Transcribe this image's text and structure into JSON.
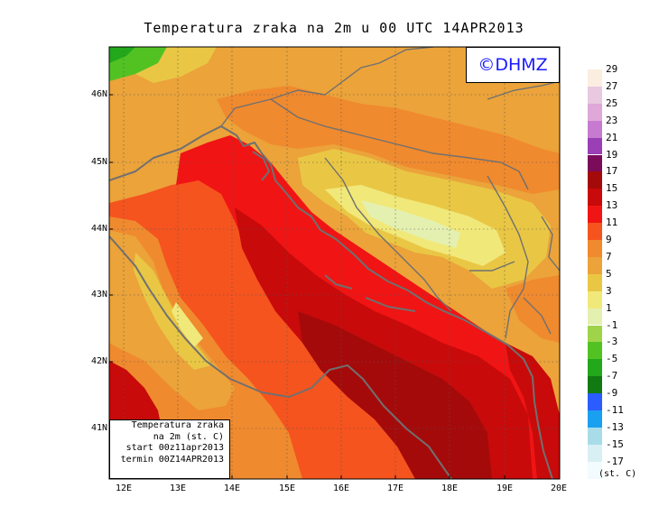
{
  "title": "Temperatura zraka na 2m u 00 UTC 14APR2013",
  "logo": "©DHMZ",
  "lat_labels": [
    "46N",
    "45N",
    "44N",
    "43N",
    "42N",
    "41N"
  ],
  "lon_labels": [
    "12E",
    "13E",
    "14E",
    "15E",
    "16E",
    "17E",
    "18E",
    "19E",
    "20E"
  ],
  "info": {
    "line1": "Temperatura zraka",
    "line2": "na 2m (st. C)",
    "line3": "start 00z11apr2013",
    "line4": "termin 00Z14APR2013"
  },
  "legend": {
    "unit": "(st. C)",
    "levels": [
      {
        "label": "29",
        "color": "#fbeee0"
      },
      {
        "label": "27",
        "color": "#e8c9e0"
      },
      {
        "label": "25",
        "color": "#dfa8d8"
      },
      {
        "label": "23",
        "color": "#c77bd0"
      },
      {
        "label": "21",
        "color": "#9a3fb6"
      },
      {
        "label": "19",
        "color": "#7a0c5a"
      },
      {
        "label": "17",
        "color": "#a50a0a"
      },
      {
        "label": "15",
        "color": "#c80a0a"
      },
      {
        "label": "13",
        "color": "#f11414"
      },
      {
        "label": "11",
        "color": "#f5541e"
      },
      {
        "label": "9",
        "color": "#f08a2e"
      },
      {
        "label": "7",
        "color": "#eba33a"
      },
      {
        "label": "5",
        "color": "#e9c744"
      },
      {
        "label": "3",
        "color": "#f1e87a"
      },
      {
        "label": "1",
        "color": "#e4f0b0"
      },
      {
        "label": "-1",
        "color": "#9fd44a"
      },
      {
        "label": "-3",
        "color": "#52c223"
      },
      {
        "label": "-5",
        "color": "#22a81a"
      },
      {
        "label": "-7",
        "color": "#127a12"
      },
      {
        "label": "-9",
        "color": "#2a5cff"
      },
      {
        "label": "-11",
        "color": "#1aa0f0"
      },
      {
        "label": "-13",
        "color": "#a8dce8"
      },
      {
        "label": "-15",
        "color": "#d8f0f4"
      },
      {
        "label": "-17",
        "color": "#f2fbfd"
      }
    ]
  }
}
